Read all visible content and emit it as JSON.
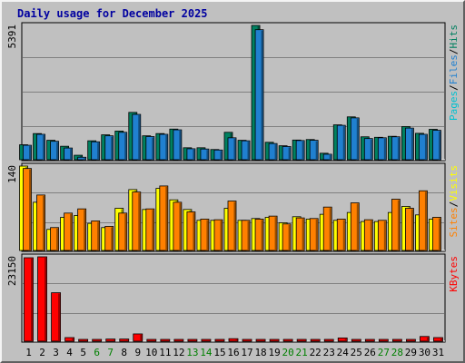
{
  "title": "Daily usage for December 2025",
  "colors": {
    "pages": "#00c0d0",
    "files": "#2080d0",
    "hits": "#008060",
    "sites": "#ff8000",
    "visits": "#ffff00",
    "kbytes": "#ff0000",
    "weekend_day": "#008000",
    "weekday": "#000000",
    "panel_bg": "#c0c0c0",
    "gridline": "#808080"
  },
  "chart_data": [
    {
      "type": "bar",
      "panel": "hits-files-pages",
      "ymax_label": "5391",
      "ylim": [
        0,
        5391
      ],
      "legend": [
        {
          "text": "Pages",
          "color": "#00c0d0"
        },
        {
          "text": "/",
          "color": "#000000"
        },
        {
          "text": "Files",
          "color": "#2080d0"
        },
        {
          "text": "/",
          "color": "#000000"
        },
        {
          "text": "Hits",
          "color": "#008060"
        }
      ],
      "categories": [
        "1",
        "2",
        "3",
        "4",
        "5",
        "6",
        "7",
        "8",
        "9",
        "10",
        "11",
        "12",
        "13",
        "14",
        "15",
        "16",
        "17",
        "18",
        "19",
        "20",
        "21",
        "22",
        "23",
        "24",
        "25",
        "26",
        "27",
        "28",
        "29",
        "30",
        "31"
      ],
      "series": [
        {
          "name": "Hits",
          "values": [
            600,
            1050,
            780,
            540,
            180,
            760,
            1000,
            1150,
            1900,
            960,
            1050,
            1230,
            480,
            480,
            410,
            1100,
            780,
            5391,
            700,
            560,
            790,
            810,
            260,
            1400,
            1720,
            920,
            900,
            940,
            1330,
            1060,
            1220
          ]
        },
        {
          "name": "Files",
          "values": [
            580,
            1020,
            740,
            470,
            100,
            720,
            960,
            1100,
            1820,
            930,
            1020,
            1200,
            440,
            430,
            390,
            880,
            760,
            5220,
            650,
            530,
            770,
            780,
            220,
            1380,
            1680,
            850,
            880,
            920,
            1270,
            1020,
            1180
          ]
        }
      ]
    },
    {
      "type": "bar",
      "panel": "visits-sites",
      "ymax_label": "140",
      "ylim": [
        0,
        140
      ],
      "legend": [
        {
          "text": "Sites",
          "color": "#ff8000"
        },
        {
          "text": "/",
          "color": "#000000"
        },
        {
          "text": "Visits",
          "color": "#ffff00"
        }
      ],
      "categories": [
        "1",
        "2",
        "3",
        "4",
        "5",
        "6",
        "7",
        "8",
        "9",
        "10",
        "11",
        "12",
        "13",
        "14",
        "15",
        "16",
        "17",
        "18",
        "19",
        "20",
        "21",
        "22",
        "23",
        "24",
        "25",
        "26",
        "27",
        "28",
        "29",
        "30",
        "31"
      ],
      "series": [
        {
          "name": "Visits",
          "values": [
            140,
            80,
            35,
            55,
            58,
            45,
            38,
            70,
            101,
            68,
            103,
            84,
            68,
            50,
            50,
            70,
            50,
            53,
            55,
            46,
            56,
            52,
            60,
            50,
            63,
            48,
            48,
            63,
            73,
            59,
            52
          ]
        },
        {
          "name": "Sites",
          "values": [
            136,
            92,
            38,
            62,
            69,
            49,
            40,
            62,
            97,
            69,
            107,
            80,
            64,
            52,
            51,
            82,
            50,
            52,
            57,
            44,
            54,
            53,
            72,
            52,
            79,
            51,
            50,
            85,
            70,
            99,
            55
          ]
        }
      ]
    },
    {
      "type": "bar",
      "panel": "kbytes",
      "ymax_label": "23150",
      "ylim": [
        0,
        23150
      ],
      "legend": [
        {
          "text": "KBytes",
          "color": "#ff0000"
        }
      ],
      "categories": [
        "1",
        "2",
        "3",
        "4",
        "5",
        "6",
        "7",
        "8",
        "9",
        "10",
        "11",
        "12",
        "13",
        "14",
        "15",
        "16",
        "17",
        "18",
        "19",
        "20",
        "21",
        "22",
        "23",
        "24",
        "25",
        "26",
        "27",
        "28",
        "29",
        "30",
        "31"
      ],
      "series": [
        {
          "name": "KBytes",
          "values": [
            22900,
            23150,
            13300,
            1000,
            300,
            200,
            600,
            600,
            2000,
            300,
            200,
            200,
            200,
            200,
            500,
            700,
            300,
            200,
            200,
            200,
            500,
            400,
            500,
            900,
            300,
            200,
            200,
            200,
            500,
            1300,
            1000
          ]
        }
      ]
    }
  ],
  "x_axis": {
    "labels": [
      "1",
      "2",
      "3",
      "4",
      "5",
      "6",
      "7",
      "8",
      "9",
      "10",
      "11",
      "12",
      "13",
      "14",
      "15",
      "16",
      "17",
      "18",
      "19",
      "20",
      "21",
      "22",
      "23",
      "24",
      "25",
      "26",
      "27",
      "28",
      "29",
      "30",
      "31"
    ],
    "weekend_days": [
      "6",
      "7",
      "13",
      "14",
      "20",
      "21",
      "27",
      "28"
    ]
  }
}
